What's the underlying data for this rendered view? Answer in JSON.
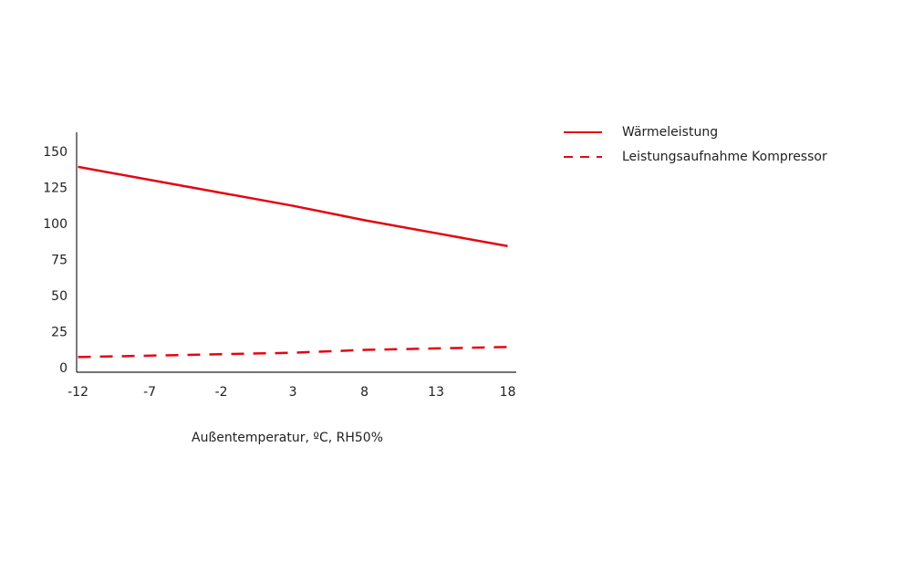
{
  "chart_data": {
    "type": "line",
    "x_label": "Außentemperatur, ºC, RH50%",
    "x": [
      -12,
      -7,
      -2,
      3,
      8,
      13,
      18
    ],
    "series": [
      {
        "name": "Wärmeleistung",
        "color": "#e30613",
        "dash": false,
        "values": [
          140,
          131,
          122,
          113,
          103,
          94,
          85
        ]
      },
      {
        "name": "Leistungsaufnahme Kompressor",
        "color": "#e30613",
        "dash": true,
        "values": [
          8,
          9,
          10,
          11,
          13,
          14,
          15
        ]
      }
    ],
    "xlim": [
      -12.1,
      18.6
    ],
    "xticks": [
      -12,
      -7,
      -2,
      3,
      8,
      13,
      18
    ],
    "ylim": [
      -2.5,
      164
    ],
    "yticks": [
      0,
      25,
      50,
      75,
      100,
      125,
      150
    ],
    "grid": false,
    "legend": "right"
  }
}
